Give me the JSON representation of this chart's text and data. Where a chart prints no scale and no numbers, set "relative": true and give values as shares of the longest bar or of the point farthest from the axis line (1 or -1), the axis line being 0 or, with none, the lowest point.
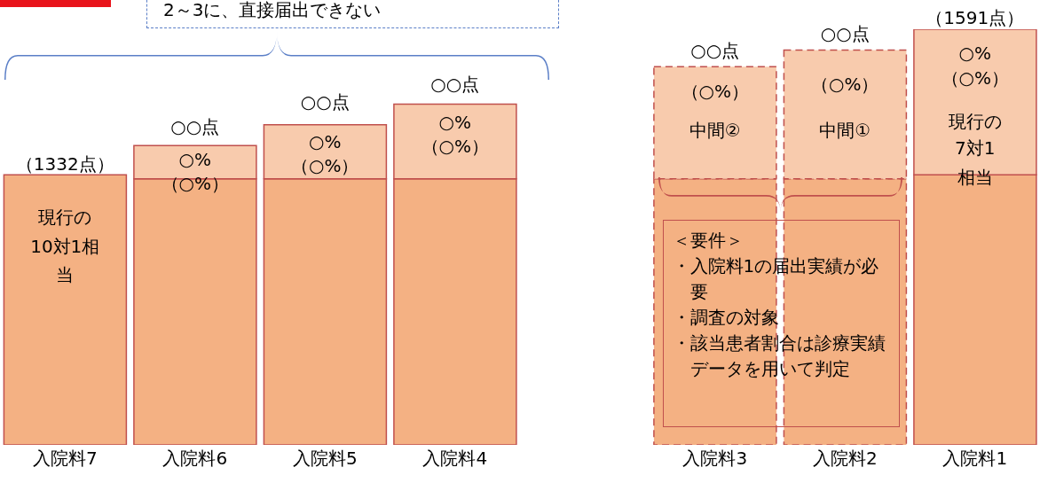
{
  "chart_data": {
    "type": "bar",
    "relative": true,
    "stacked": true,
    "categories": [
      "入院料7",
      "入院料6",
      "入院料5",
      "入院料4",
      null,
      "入院料3",
      "入院料2",
      "入院料1"
    ],
    "series": [
      {
        "color": "#f4b183",
        "line_style": "solid",
        "values": [
          0.65,
          0.64,
          0.64,
          0.64,
          null,
          null,
          null,
          0.65
        ]
      },
      {
        "color": "#f8cbad",
        "line_style": "solid",
        "values": [
          null,
          0.08,
          0.13,
          0.18,
          null,
          null,
          null,
          0.35
        ]
      },
      {
        "color": "#f4b183",
        "line_style": "dashed",
        "values": [
          null,
          null,
          null,
          null,
          null,
          0.64,
          0.64,
          null
        ]
      },
      {
        "color": "#f8cbad",
        "line_style": "dashed",
        "values": [
          null,
          null,
          null,
          null,
          null,
          0.27,
          0.31,
          null
        ]
      }
    ],
    "annotations": [
      "2～3に、直接届出できない",
      "（1332点）",
      "現行の",
      "10対1相",
      "当",
      "○○点",
      "○%",
      "（○%）",
      "○○点",
      "○%",
      "（○%）",
      "○○点",
      "○%",
      "（○%）",
      "○○点",
      "（○%）",
      "中間②",
      "○○点",
      "（○%）",
      "中間①",
      "（1591点）",
      "○%",
      "（○%）",
      "現行の",
      "7対1",
      "相当",
      "＜要件＞",
      "・入院料1の届出実績が必要",
      "・調査の対象",
      "・該当患者割合は診療実績データを用いて判定"
    ]
  }
}
